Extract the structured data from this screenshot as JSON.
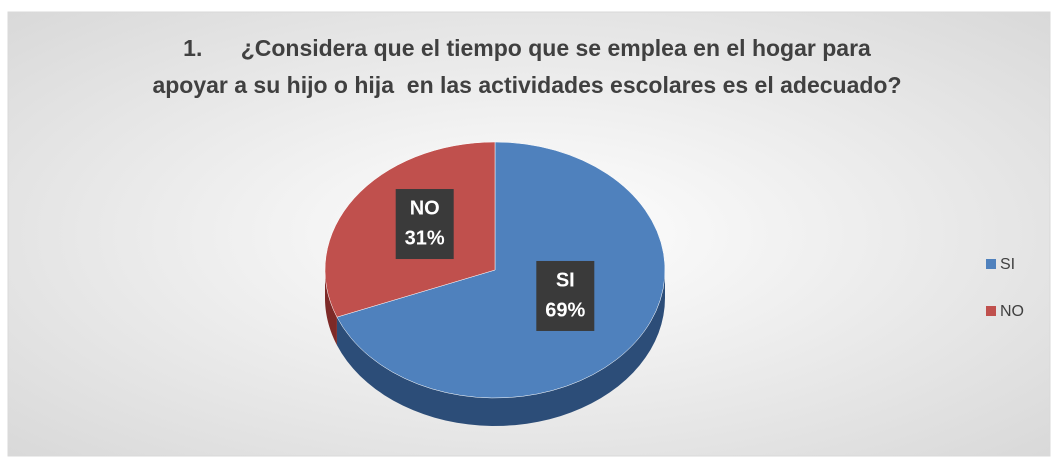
{
  "chart_data": {
    "type": "pie",
    "title": [
      "1.      ¿Considera que el tiempo que se emplea en el hogar para",
      "apoyar a su hijo o hija  en las actividades escolares es el adecuado?"
    ],
    "categories": [
      "SI",
      "NO"
    ],
    "values": [
      69,
      31
    ],
    "value_labels": [
      "69%",
      "31%"
    ],
    "colors": [
      "#4f81bd",
      "#c0504d"
    ],
    "side_colors": [
      "#2c4d78",
      "#7d2a28"
    ],
    "legend": "right"
  }
}
